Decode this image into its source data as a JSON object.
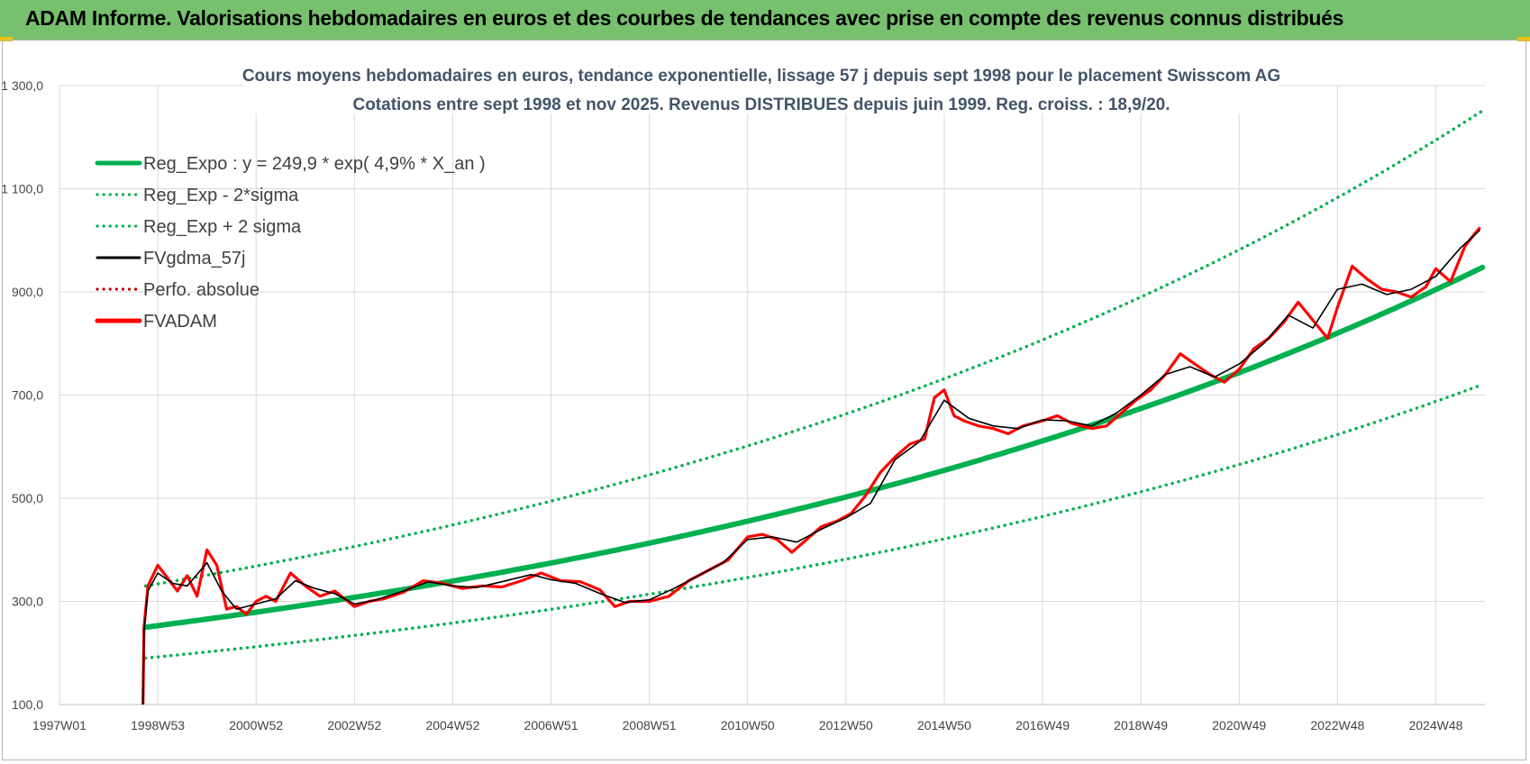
{
  "banner": {
    "title": "ADAM Informe. Valorisations hebdomadaires en euros et des courbes de tendances avec prise en compte des revenus connus distribués"
  },
  "colors": {
    "banner_bg": "#76c06e",
    "trend": "#00b050",
    "moving_avg": "#000000",
    "perfo": "#c00000",
    "price": "#ff0000",
    "grid": "#d9d9d9",
    "title": "#44546a"
  },
  "chart_data": {
    "type": "line",
    "title": "Cours moyens hebdomadaires en euros, tendance exponentielle, lissage 57 j depuis sept 1998 pour le placement Swisscom AG",
    "subtitle": "Cotations entre sept 1998 et nov 2025. Revenus DISTRIBUES depuis juin 1999. Reg. croiss. : 18,9/20.",
    "xlabel": "",
    "ylabel": "",
    "ylim": [
      100,
      1300
    ],
    "yticks": [
      "1 300,0",
      "1 100,0",
      "900,0",
      "700,0",
      "500,0",
      "300,0",
      "100,0"
    ],
    "ytick_values": [
      1300,
      1100,
      900,
      700,
      500,
      300,
      100
    ],
    "xticks": [
      "1997W01",
      "1998W53",
      "2000W52",
      "2002W52",
      "2004W52",
      "2006W51",
      "2008W51",
      "2010W50",
      "2012W50",
      "2014W50",
      "2016W49",
      "2018W49",
      "2020W49",
      "2022W48",
      "2024W48"
    ],
    "xtick_years": [
      1997.0,
      1999.0,
      2001.0,
      2003.0,
      2005.0,
      2007.0,
      2009.0,
      2011.0,
      2013.0,
      2015.0,
      2017.0,
      2019.0,
      2021.0,
      2023.0,
      2025.0
    ],
    "xlim": [
      1997.0,
      2026.0
    ],
    "legend": [
      {
        "name": "Reg_Expo : y = 249,9 * exp( 4,9% *  X_an )",
        "style": "solid-thick",
        "color": "#00b050"
      },
      {
        "name": "Reg_Exp - 2*sigma",
        "style": "dotted",
        "color": "#00b050"
      },
      {
        "name": "Reg_Exp + 2 sigma",
        "style": "dotted",
        "color": "#00b050"
      },
      {
        "name": "FVgdma_57j",
        "style": "solid",
        "color": "#000000"
      },
      {
        "name": "Perfo. absolue",
        "style": "dotted",
        "color": "#c00000"
      },
      {
        "name": "FVADAM",
        "style": "solid-thick",
        "color": "#ff0000"
      }
    ],
    "legend_position": "top-left",
    "regression": {
      "a": 249.9,
      "rate": 0.049,
      "start_year": 1998.75,
      "end_year": 2026.0
    },
    "sigma_bands": {
      "minus_2sigma_start": 190,
      "plus_2sigma_start": 330
    },
    "series": [
      {
        "name": "FVADAM",
        "x": [
          1998.7,
          1998.72,
          1998.8,
          1999.0,
          1999.2,
          1999.4,
          1999.6,
          1999.8,
          2000.0,
          2000.2,
          2000.4,
          2000.6,
          2000.8,
          2001.0,
          2001.2,
          2001.4,
          2001.7,
          2002.0,
          2002.3,
          2002.6,
          2003.0,
          2003.3,
          2003.6,
          2004.0,
          2004.4,
          2004.8,
          2005.2,
          2005.6,
          2006.0,
          2006.4,
          2006.8,
          2007.2,
          2007.6,
          2008.0,
          2008.3,
          2008.6,
          2009.0,
          2009.4,
          2009.8,
          2010.2,
          2010.6,
          2011.0,
          2011.3,
          2011.6,
          2011.9,
          2012.2,
          2012.5,
          2012.8,
          2013.1,
          2013.4,
          2013.7,
          2014.0,
          2014.3,
          2014.6,
          2014.8,
          2015.0,
          2015.2,
          2015.4,
          2015.7,
          2016.0,
          2016.3,
          2016.6,
          2017.0,
          2017.3,
          2017.6,
          2018.0,
          2018.3,
          2018.6,
          2018.9,
          2019.2,
          2019.5,
          2019.8,
          2020.1,
          2020.4,
          2020.7,
          2021.0,
          2021.3,
          2021.6,
          2021.9,
          2022.2,
          2022.5,
          2022.8,
          2023.0,
          2023.3,
          2023.6,
          2023.9,
          2024.2,
          2024.5,
          2024.8,
          2025.0,
          2025.3,
          2025.6,
          2025.9
        ],
        "values": [
          100,
          250,
          330,
          370,
          345,
          320,
          350,
          310,
          400,
          370,
          285,
          290,
          275,
          300,
          310,
          300,
          355,
          330,
          310,
          320,
          290,
          300,
          305,
          318,
          340,
          335,
          325,
          330,
          328,
          340,
          355,
          340,
          338,
          322,
          290,
          300,
          300,
          310,
          340,
          360,
          380,
          425,
          430,
          420,
          395,
          420,
          445,
          455,
          470,
          505,
          550,
          580,
          605,
          615,
          695,
          710,
          660,
          650,
          640,
          635,
          625,
          640,
          650,
          660,
          645,
          635,
          640,
          665,
          690,
          710,
          740,
          780,
          760,
          740,
          725,
          750,
          790,
          810,
          840,
          880,
          845,
          810,
          870,
          950,
          925,
          905,
          900,
          890,
          910,
          945,
          920,
          990,
          1025
        ]
      },
      {
        "name": "FVgdma_57j",
        "x": [
          1998.7,
          1998.72,
          1998.8,
          1999.0,
          1999.3,
          1999.6,
          2000.0,
          2000.3,
          2000.6,
          2001.0,
          2001.4,
          2001.8,
          2002.2,
          2002.6,
          2003.0,
          2003.4,
          2004.0,
          2004.5,
          2005.0,
          2005.5,
          2006.0,
          2006.6,
          2007.0,
          2007.5,
          2008.0,
          2008.5,
          2009.0,
          2009.5,
          2010.0,
          2010.5,
          2011.0,
          2011.5,
          2012.0,
          2012.5,
          2013.0,
          2013.5,
          2014.0,
          2014.5,
          2015.0,
          2015.5,
          2016.0,
          2016.5,
          2017.0,
          2017.5,
          2018.0,
          2018.5,
          2019.0,
          2019.5,
          2020.0,
          2020.5,
          2021.0,
          2021.5,
          2022.0,
          2022.5,
          2023.0,
          2023.5,
          2024.0,
          2024.5,
          2025.0,
          2025.5,
          2025.9
        ],
        "values": [
          100,
          240,
          320,
          355,
          335,
          330,
          375,
          320,
          285,
          295,
          305,
          340,
          325,
          315,
          295,
          302,
          320,
          338,
          330,
          327,
          338,
          352,
          342,
          335,
          315,
          298,
          303,
          325,
          350,
          375,
          420,
          425,
          415,
          440,
          462,
          490,
          575,
          610,
          690,
          655,
          640,
          635,
          652,
          650,
          640,
          665,
          700,
          740,
          755,
          735,
          760,
          800,
          855,
          830,
          905,
          915,
          895,
          905,
          930,
          985,
          1020
        ]
      }
    ]
  }
}
